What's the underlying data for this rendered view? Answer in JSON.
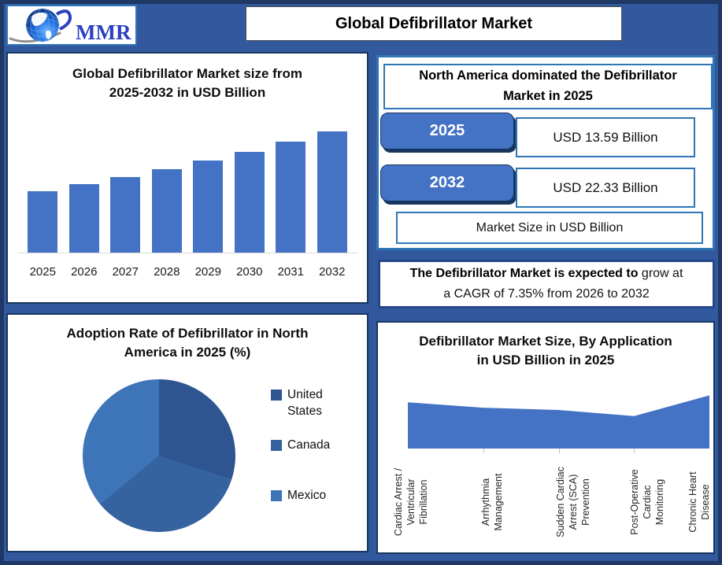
{
  "header": {
    "logo_text": "MMR",
    "title": "Global Defibrillator Market"
  },
  "na_panel": {
    "title": "North America dominated the Defibrillator\nMarket in 2025",
    "rows": [
      {
        "year": "2025",
        "value": "USD 13.59 Billion"
      },
      {
        "year": "2032",
        "value": "USD 22.33 Billion"
      }
    ],
    "footer": "Market Size in USD Billion"
  },
  "cagr_note": {
    "bold": "The Defibrillator Market is expected to",
    "normal": " grow at",
    "line2": "a CAGR of 7.35% from 2026 to 2032"
  },
  "chart_data": [
    {
      "id": "market-size-bar",
      "type": "bar",
      "title": "Global Defibrillator Market size from\n2025-2032 in USD Billion",
      "categories": [
        "2025",
        "2026",
        "2027",
        "2028",
        "2029",
        "2030",
        "2031",
        "2032"
      ],
      "values": [
        13.59,
        14.59,
        15.66,
        16.81,
        18.04,
        19.37,
        20.79,
        22.33
      ],
      "unit": "USD Billion",
      "bar_color": "#4472C4",
      "ylim": [
        0,
        24
      ],
      "grid": false,
      "legend_position": "none"
    },
    {
      "id": "adoption-pie",
      "type": "pie",
      "title": "Adoption Rate of Defibrillator in North\nAmerica in 2025 (%)",
      "labels": [
        "United States",
        "Canada",
        "Mexico"
      ],
      "values": [
        30,
        34,
        36
      ],
      "colors": [
        "#2E5590",
        "#35639F",
        "#3E74B8"
      ],
      "legend_position": "right"
    },
    {
      "id": "application-area",
      "type": "area",
      "title": "Defibrillator Market Size, By Application\nin USD Billion in 2025",
      "categories": [
        "Cardiac Arrest /\nVentricular\nFibrillation",
        "Arrhythmia\nManagement",
        "Sudden Cardiac\nArrest (SCA)\nPrevention",
        "Post-Operative\nCardiac\nMonitoring",
        "Chronic Heart\nDisease"
      ],
      "values": [
        3.0,
        2.65,
        2.5,
        2.1,
        3.45
      ],
      "unit": "USD Billion",
      "fill_color": "#4472C4",
      "ylim": [
        0,
        5
      ],
      "grid": false,
      "legend_position": "none"
    }
  ],
  "colors": {
    "background": "#32599E",
    "frame_border": "#1F3864",
    "accent_blue": "#4472C4",
    "panel_border_dark": "#17375E",
    "panel_border_blue": "#2E75B6",
    "pill_shadow": "#17375E",
    "axis_gray": "#D9D9D9"
  }
}
